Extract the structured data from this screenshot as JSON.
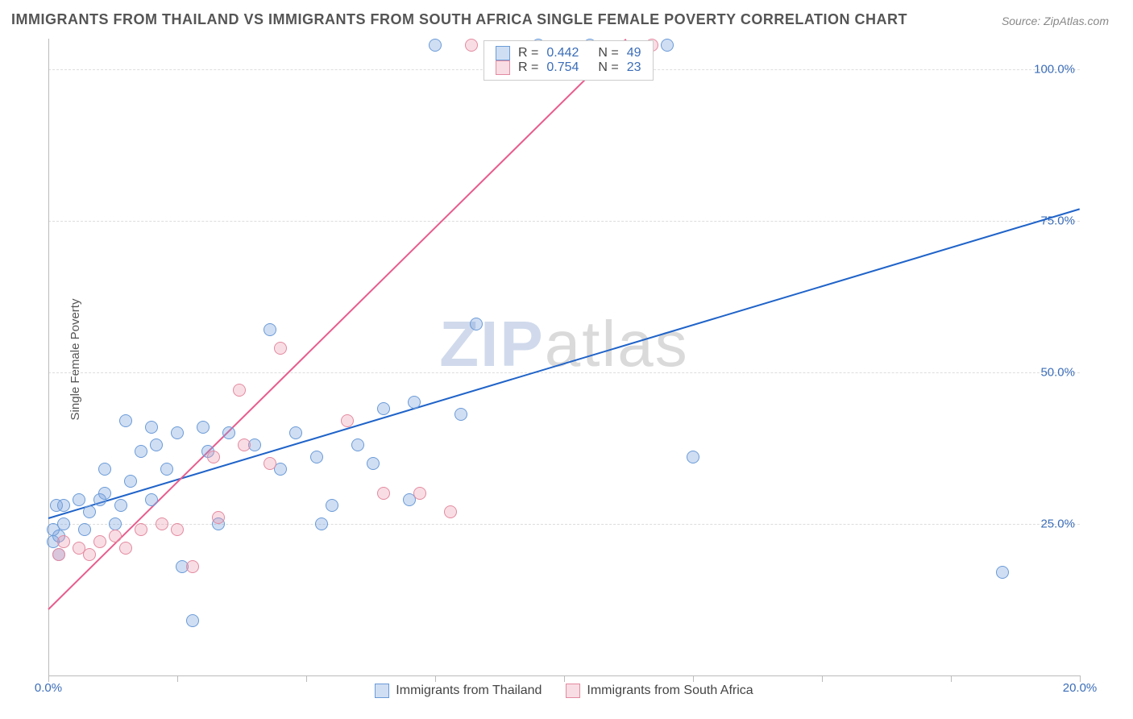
{
  "title": "IMMIGRANTS FROM THAILAND VS IMMIGRANTS FROM SOUTH AFRICA SINGLE FEMALE POVERTY CORRELATION CHART",
  "source": "Source: ZipAtlas.com",
  "ylabel": "Single Female Poverty",
  "watermark": {
    "prefix": "ZIP",
    "suffix": "atlas"
  },
  "colors": {
    "series_a_fill": "rgba(120,160,220,0.35)",
    "series_a_stroke": "#6a9bd8",
    "series_a_line": "#1f63c9",
    "series_b_fill": "rgba(235,150,170,0.32)",
    "series_b_stroke": "#e38aa0",
    "series_b_line": "#e75c8d",
    "axis": "#bbbbbb",
    "grid": "#dddddd",
    "tick_text": "#3b6db8",
    "title_text": "#555555"
  },
  "chart": {
    "type": "scatter",
    "xlim": [
      0,
      20
    ],
    "ylim": [
      0,
      105
    ],
    "x_ticks": [
      0,
      2.5,
      5,
      7.5,
      10,
      12.5,
      15,
      17.5,
      20
    ],
    "x_tick_labels": {
      "0": "0.0%",
      "20": "20.0%"
    },
    "y_ticks": [
      25,
      50,
      75,
      100
    ],
    "y_tick_labels": {
      "25": "25.0%",
      "50": "50.0%",
      "75": "75.0%",
      "100": "100.0%"
    },
    "point_radius": 8,
    "series": [
      {
        "name": "Immigrants from Thailand",
        "key": "a",
        "R": "0.442",
        "N": "49",
        "trend": {
          "x1": 0,
          "y1": 26,
          "x2": 20,
          "y2": 77
        },
        "points": [
          [
            0.1,
            22
          ],
          [
            0.1,
            24
          ],
          [
            0.15,
            28
          ],
          [
            0.2,
            20
          ],
          [
            0.2,
            23
          ],
          [
            0.3,
            25
          ],
          [
            0.3,
            28
          ],
          [
            0.6,
            29
          ],
          [
            0.7,
            24
          ],
          [
            0.8,
            27
          ],
          [
            1.0,
            29
          ],
          [
            1.1,
            30
          ],
          [
            1.1,
            34
          ],
          [
            1.3,
            25
          ],
          [
            1.4,
            28
          ],
          [
            1.5,
            42
          ],
          [
            1.6,
            32
          ],
          [
            1.8,
            37
          ],
          [
            2.0,
            29
          ],
          [
            2.0,
            41
          ],
          [
            2.1,
            38
          ],
          [
            2.3,
            34
          ],
          [
            2.5,
            40
          ],
          [
            2.6,
            18
          ],
          [
            2.8,
            9
          ],
          [
            3.0,
            41
          ],
          [
            3.1,
            37
          ],
          [
            3.3,
            25
          ],
          [
            3.5,
            40
          ],
          [
            4.0,
            38
          ],
          [
            4.3,
            57
          ],
          [
            4.5,
            34
          ],
          [
            4.8,
            40
          ],
          [
            5.2,
            36
          ],
          [
            5.3,
            25
          ],
          [
            5.5,
            28
          ],
          [
            6.0,
            38
          ],
          [
            6.3,
            35
          ],
          [
            6.5,
            44
          ],
          [
            7.0,
            29
          ],
          [
            7.1,
            45
          ],
          [
            7.5,
            104
          ],
          [
            8.0,
            43
          ],
          [
            8.3,
            58
          ],
          [
            9.5,
            104
          ],
          [
            10.5,
            104
          ],
          [
            12.0,
            104
          ],
          [
            12.5,
            36
          ],
          [
            18.5,
            17
          ]
        ]
      },
      {
        "name": "Immigrants from South Africa",
        "key": "b",
        "R": "0.754",
        "N": "23",
        "trend": {
          "x1": 0,
          "y1": 11,
          "x2": 11.2,
          "y2": 105
        },
        "points": [
          [
            0.2,
            20
          ],
          [
            0.3,
            22
          ],
          [
            0.6,
            21
          ],
          [
            0.8,
            20
          ],
          [
            1.0,
            22
          ],
          [
            1.3,
            23
          ],
          [
            1.5,
            21
          ],
          [
            1.8,
            24
          ],
          [
            2.2,
            25
          ],
          [
            2.5,
            24
          ],
          [
            2.8,
            18
          ],
          [
            3.2,
            36
          ],
          [
            3.3,
            26
          ],
          [
            3.7,
            47
          ],
          [
            3.8,
            38
          ],
          [
            4.3,
            35
          ],
          [
            4.5,
            54
          ],
          [
            5.8,
            42
          ],
          [
            6.5,
            30
          ],
          [
            7.2,
            30
          ],
          [
            7.8,
            27
          ],
          [
            8.2,
            104
          ],
          [
            11.7,
            104
          ]
        ]
      }
    ]
  },
  "legend_top": [
    {
      "series": "a",
      "R_label": "R =",
      "N_label": "N ="
    },
    {
      "series": "b",
      "R_label": "R =",
      "N_label": "N ="
    }
  ]
}
